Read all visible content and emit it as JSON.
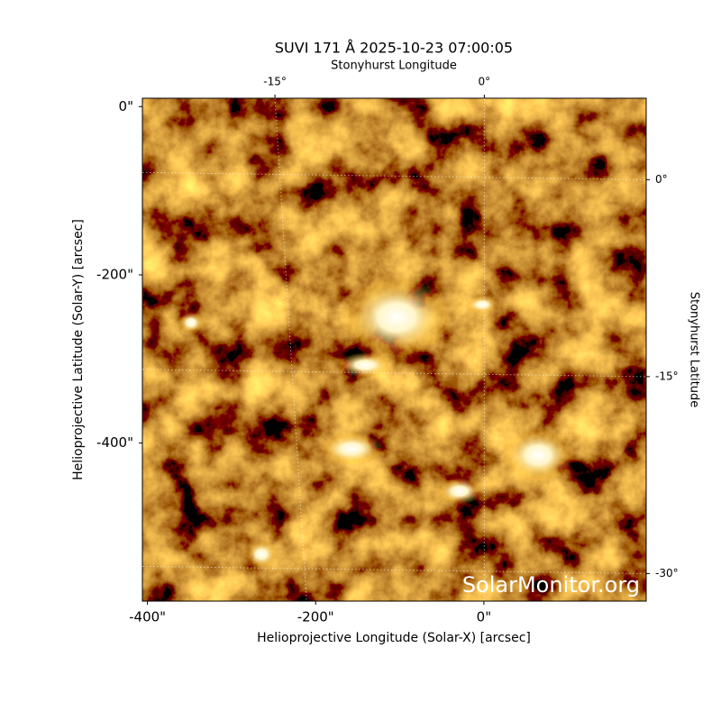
{
  "chart_data": {
    "type": "image",
    "title": "SUVI 171 Å 2025-10-23 07:00:05",
    "xlabel": "Helioprojective Longitude (Solar-X) [arcsec]",
    "ylabel": "Helioprojective Latitude (Solar-Y) [arcsec]",
    "x2label": "Stonyhurst Longitude",
    "y2label": "Stonyhurst Latitude",
    "xlim": [
      -406,
      193
    ],
    "ylim": [
      -588,
      10
    ],
    "xticks": [
      {
        "value": -400,
        "label": "-400\""
      },
      {
        "value": -200,
        "label": "-200\""
      },
      {
        "value": 0,
        "label": "0\""
      }
    ],
    "yticks": [
      {
        "value": 0,
        "label": "0\""
      },
      {
        "value": -200,
        "label": "-200\""
      },
      {
        "value": -400,
        "label": "-400\""
      }
    ],
    "x2lim": [
      -24.5,
      11.6
    ],
    "x2ticks": [
      {
        "value": -15,
        "label": "-15°"
      },
      {
        "value": 0,
        "label": "0°"
      }
    ],
    "y2lim": [
      -32.1,
      6.2
    ],
    "y2ticks": [
      {
        "value": 0,
        "label": "0°"
      },
      {
        "value": -15,
        "label": "-15°"
      },
      {
        "value": -30,
        "label": "-30°"
      }
    ],
    "grid": true,
    "watermark": "SolarMonitor.org"
  }
}
